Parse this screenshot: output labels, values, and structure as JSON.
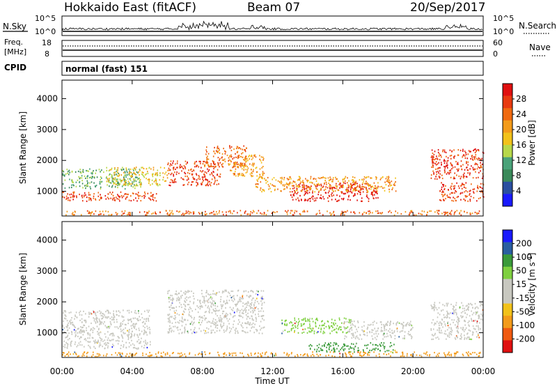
{
  "header": {
    "station": "Hokkaido East (fitACF)",
    "beam": "Beam 07",
    "date": "20/Sep/2017"
  },
  "nsky_panel": {
    "left_label": "N.Sky",
    "right_label": "N.Search",
    "left_ticks": [
      "10^5",
      "10^0"
    ],
    "right_ticks": [
      "10^5",
      "10^0"
    ]
  },
  "freq_panel": {
    "left_label_1": "Freq.",
    "left_label_2": "[MHz]",
    "right_label": "Nave",
    "left_ticks": [
      "18",
      "8"
    ],
    "right_ticks": [
      "60",
      "0"
    ]
  },
  "cpid_panel": {
    "label": "CPID",
    "text": "normal (fast) 151"
  },
  "colors": {
    "power": [
      "#1a1aff",
      "#2a4fa0",
      "#3a8a5a",
      "#4aa37a",
      "#b7d84a",
      "#f2c21a",
      "#f39b1a",
      "#f06a10",
      "#e83a10",
      "#e01010"
    ],
    "velocity": [
      "#e01010",
      "#f05a10",
      "#f39b1a",
      "#f2c21a",
      "#c8c8c0",
      "#c8c8c0",
      "#7fd040",
      "#3a9a3a",
      "#2a5fa0",
      "#1a1aff"
    ],
    "ground_scatter": "#c8c8c0"
  },
  "chart_data": [
    {
      "type": "heatmap",
      "name": "power",
      "x_ticks": [
        "00:00",
        "04:00",
        "08:00",
        "12:00",
        "16:00",
        "20:00",
        "00:00"
      ],
      "xlim": [
        0,
        24
      ],
      "ylabel": "Slant Range [km]",
      "ylim": [
        200,
        4600
      ],
      "y_ticks": [
        1000,
        2000,
        3000,
        4000
      ],
      "colorbar": {
        "label": "Power [dB]",
        "ticks": [
          4,
          8,
          12,
          16,
          20,
          24,
          28
        ],
        "range": [
          0,
          32
        ]
      },
      "regions": [
        {
          "t0": 0.0,
          "t1": 4.5,
          "r0": 1100,
          "r1": 1750,
          "level": 12
        },
        {
          "t0": 0.0,
          "t1": 5.5,
          "r0": 700,
          "r1": 1000,
          "level": 28
        },
        {
          "t0": 2.5,
          "t1": 6.0,
          "r0": 1200,
          "r1": 1800,
          "level": 18
        },
        {
          "t0": 6.0,
          "t1": 9.0,
          "r0": 1200,
          "r1": 2000,
          "level": 26
        },
        {
          "t0": 8.0,
          "t1": 10.5,
          "r0": 1800,
          "r1": 2500,
          "level": 24
        },
        {
          "t0": 9.5,
          "t1": 11.5,
          "r0": 1500,
          "r1": 2200,
          "level": 22
        },
        {
          "t0": 13.0,
          "t1": 18.0,
          "r0": 700,
          "r1": 1300,
          "level": 30
        },
        {
          "t0": 11.0,
          "t1": 19.0,
          "r0": 1000,
          "r1": 1500,
          "level": 20
        },
        {
          "t0": 21.0,
          "t1": 24.0,
          "r0": 1400,
          "r1": 2400,
          "level": 26
        },
        {
          "t0": 21.5,
          "t1": 24.0,
          "r0": 700,
          "r1": 1300,
          "level": 28
        },
        {
          "t0": 0.0,
          "t1": 24.0,
          "r0": 250,
          "r1": 400,
          "level": 24
        }
      ]
    },
    {
      "type": "heatmap",
      "name": "velocity",
      "x_ticks": [
        "00:00",
        "04:00",
        "08:00",
        "12:00",
        "16:00",
        "20:00",
        "00:00"
      ],
      "xlim": [
        0,
        24
      ],
      "xlabel": "Time UT",
      "ylabel": "Slant Range [km]",
      "ylim": [
        200,
        4600
      ],
      "y_ticks": [
        1000,
        2000,
        3000,
        4000
      ],
      "colorbar": {
        "label": "Velocity [m s^-1]",
        "ticks": [
          "200",
          "100",
          "50",
          "15",
          "-15",
          "-50",
          "-100",
          "-200"
        ]
      },
      "regions": [
        {
          "t0": 0.0,
          "t1": 5.0,
          "r0": 500,
          "r1": 1750,
          "level": 0
        },
        {
          "t0": 6.0,
          "t1": 11.5,
          "r0": 1000,
          "r1": 2400,
          "level": 0
        },
        {
          "t0": 12.5,
          "t1": 16.5,
          "r0": 1000,
          "r1": 1500,
          "level": 50
        },
        {
          "t0": 14.0,
          "t1": 19.0,
          "r0": 400,
          "r1": 700,
          "level": 40
        },
        {
          "t0": 16.0,
          "t1": 20.0,
          "r0": 800,
          "r1": 1400,
          "level": 0
        },
        {
          "t0": 21.0,
          "t1": 24.0,
          "r0": 800,
          "r1": 2000,
          "level": 0
        },
        {
          "t0": 0.0,
          "t1": 24.0,
          "r0": 250,
          "r1": 400,
          "level": -40
        }
      ]
    }
  ]
}
